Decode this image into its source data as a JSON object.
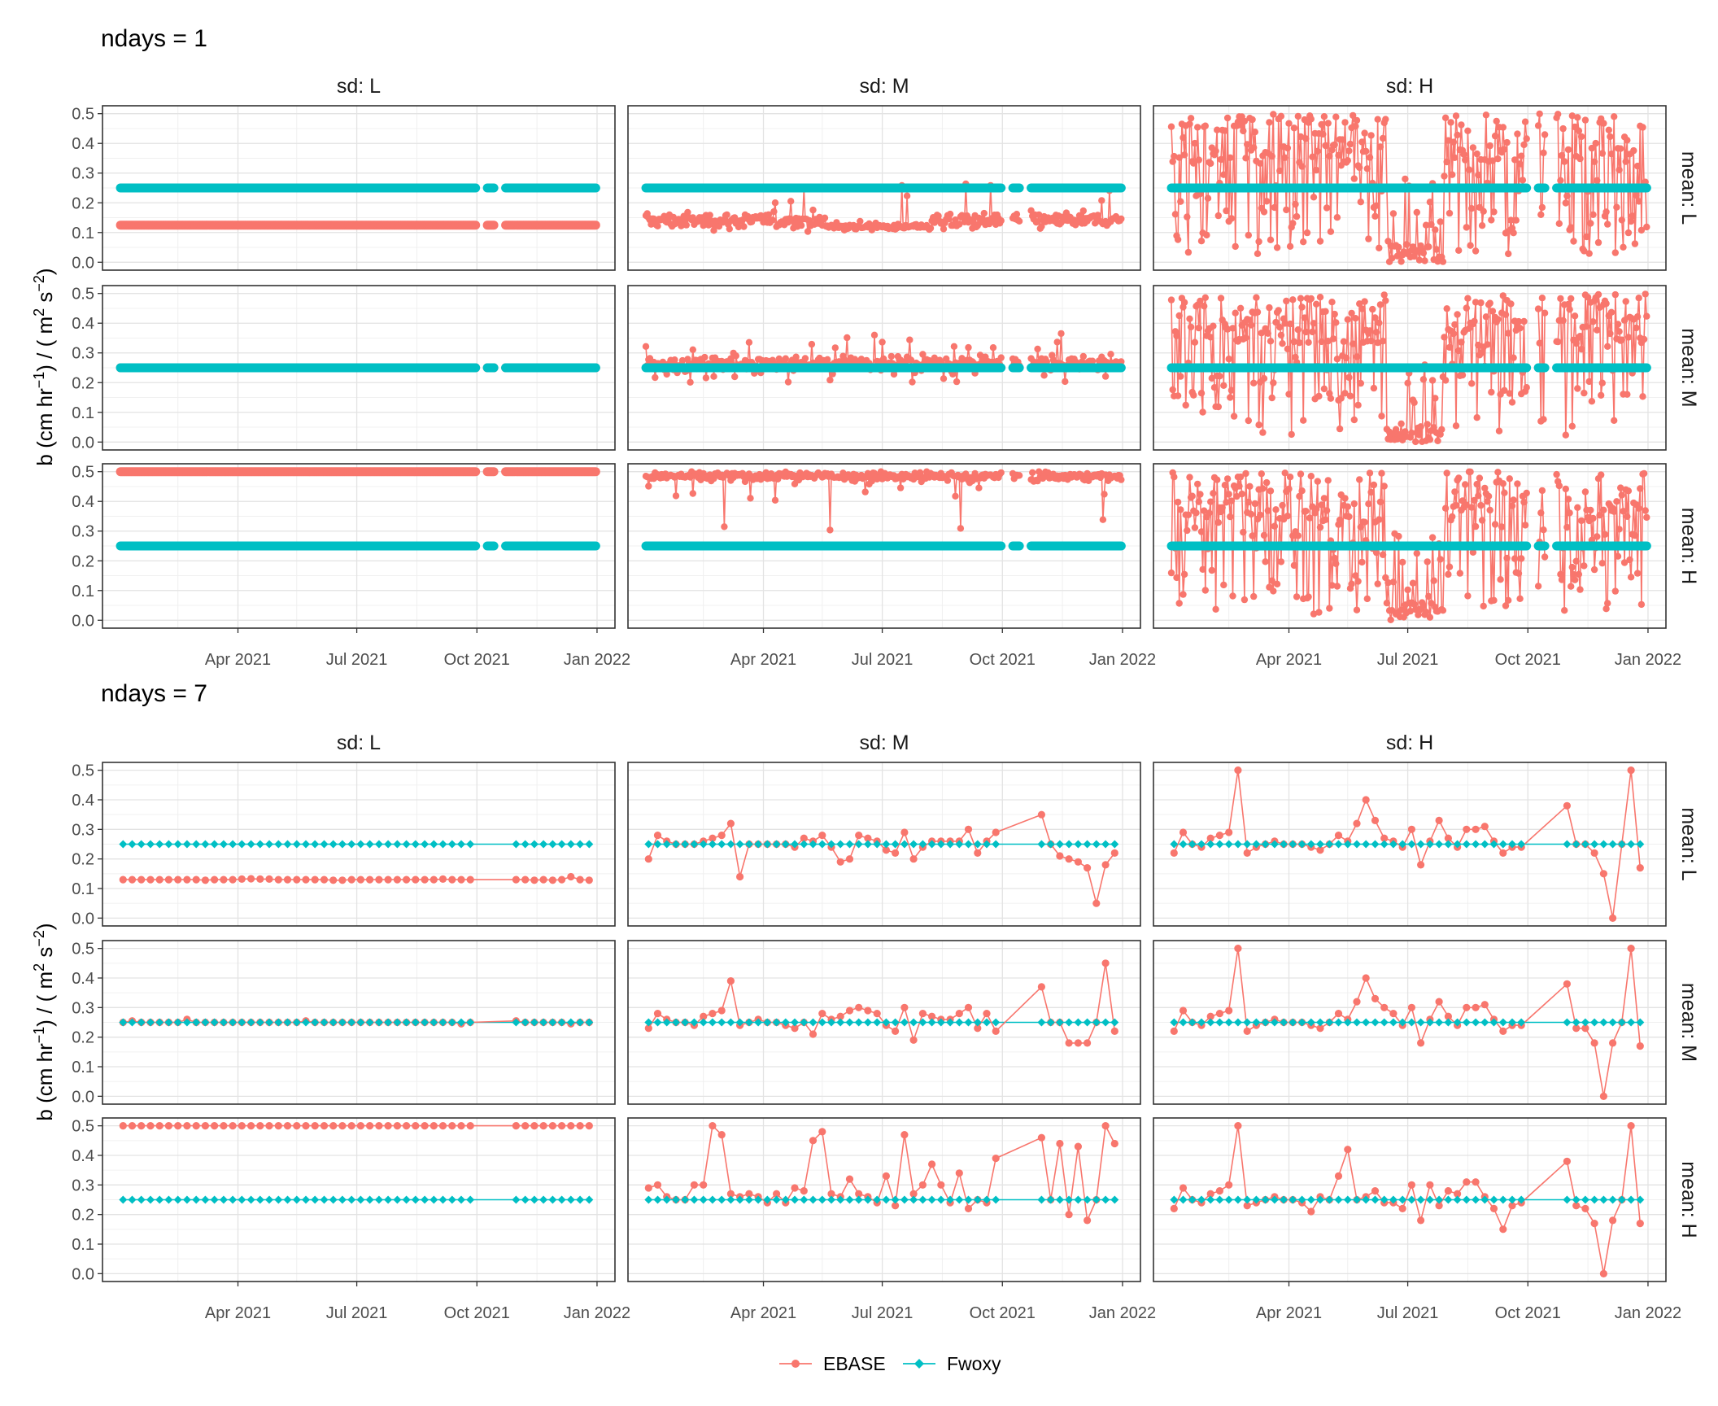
{
  "chart_data": [
    {
      "type": "line",
      "title": "ndays = 1",
      "ylabel": "b (cm hr^-1) / ( m^2 s^-2)",
      "ylim": [
        0,
        0.5
      ],
      "yticks": [
        "0.0",
        "0.1",
        "0.2",
        "0.3",
        "0.4",
        "0.5"
      ],
      "xlim": [
        "2021-01-01",
        "2022-01-01"
      ],
      "xticks": [
        "Apr 2021",
        "Jul 2021",
        "Oct 2021",
        "Jan 2022"
      ],
      "columns": [
        "sd: L",
        "sd: M",
        "sd: H"
      ],
      "rows": [
        "mean: L",
        "mean: M",
        "mean: H"
      ],
      "gaps": [
        [
          "2021-10-01",
          "2021-10-08"
        ],
        [
          "2021-10-15",
          "2021-10-22"
        ]
      ],
      "legend": "bottom",
      "grid": true,
      "panels": [
        {
          "col": "sd: L",
          "row": "mean: L",
          "EBASE": "constant ≈ 0.125",
          "Fwoxy": "constant 0.25"
        },
        {
          "col": "sd: M",
          "row": "mean: L",
          "EBASE": "daily ≈ 0.10–0.20, peak ≈ 0.29",
          "Fwoxy": "constant 0.25"
        },
        {
          "col": "sd: H",
          "row": "mean: L",
          "EBASE": "daily 0.0–0.5, near 0 in Jun–Jul 2021",
          "Fwoxy": "constant 0.25"
        },
        {
          "col": "sd: L",
          "row": "mean: M",
          "EBASE": "constant ≈ 0.25",
          "Fwoxy": "constant 0.25"
        },
        {
          "col": "sd: M",
          "row": "mean: M",
          "EBASE": "daily ≈ 0.20–0.37",
          "Fwoxy": "constant 0.25"
        },
        {
          "col": "sd: H",
          "row": "mean: M",
          "EBASE": "daily 0.0–0.5, near 0 in Jun–Jul 2021",
          "Fwoxy": "constant 0.25"
        },
        {
          "col": "sd: L",
          "row": "mean: H",
          "EBASE": "constant ≈ 0.50",
          "Fwoxy": "constant 0.25"
        },
        {
          "col": "sd: M",
          "row": "mean: H",
          "EBASE": "daily ≈ 0.30–0.50",
          "Fwoxy": "constant 0.25"
        },
        {
          "col": "sd: H",
          "row": "mean: H",
          "EBASE": "daily 0.0–0.5, near 0 in Jun–Jul 2021",
          "Fwoxy": "constant 0.25"
        }
      ],
      "series": [
        {
          "name": "EBASE",
          "color": "#F8766D"
        },
        {
          "name": "Fwoxy",
          "color": "#00BFC4"
        }
      ]
    },
    {
      "type": "line",
      "title": "ndays = 7",
      "ylabel": "b (cm hr^-1) / ( m^2 s^-2)",
      "ylim": [
        0,
        0.5
      ],
      "yticks": [
        "0.0",
        "0.1",
        "0.2",
        "0.3",
        "0.4",
        "0.5"
      ],
      "xlim": [
        "2021-01-01",
        "2022-01-01"
      ],
      "xticks": [
        "Apr 2021",
        "Jul 2021",
        "Oct 2021",
        "Jan 2022"
      ],
      "columns": [
        "sd: L",
        "sd: M",
        "sd: H"
      ],
      "rows": [
        "mean: L",
        "mean: M",
        "mean: H"
      ],
      "x": [
        "2021-01-03",
        "2021-01-10",
        "2021-01-17",
        "2021-01-24",
        "2021-01-31",
        "2021-02-07",
        "2021-02-14",
        "2021-02-21",
        "2021-02-28",
        "2021-03-07",
        "2021-03-14",
        "2021-03-21",
        "2021-03-28",
        "2021-04-04",
        "2021-04-11",
        "2021-04-18",
        "2021-04-25",
        "2021-05-02",
        "2021-05-09",
        "2021-05-16",
        "2021-05-23",
        "2021-05-30",
        "2021-06-06",
        "2021-06-13",
        "2021-06-20",
        "2021-06-27",
        "2021-07-04",
        "2021-07-11",
        "2021-07-18",
        "2021-07-25",
        "2021-08-01",
        "2021-08-08",
        "2021-08-15",
        "2021-08-22",
        "2021-08-29",
        "2021-09-05",
        "2021-09-12",
        "2021-09-19",
        "2021-09-26",
        "2021-10-31",
        "2021-11-07",
        "2021-11-14",
        "2021-11-21",
        "2021-11-28",
        "2021-12-05",
        "2021-12-12",
        "2021-12-19",
        "2021-12-26"
      ],
      "Fwoxy": 0.25,
      "panels": [
        {
          "col": "sd: L",
          "row": "mean: L",
          "EBASE": [
            0.13,
            0.13,
            0.13,
            0.13,
            0.13,
            0.13,
            0.13,
            0.13,
            0.13,
            0.128,
            0.13,
            0.13,
            0.13,
            0.132,
            0.133,
            0.132,
            0.132,
            0.13,
            0.13,
            0.13,
            0.13,
            0.13,
            0.13,
            0.128,
            0.128,
            0.13,
            0.13,
            0.13,
            0.13,
            0.13,
            0.13,
            0.13,
            0.13,
            0.13,
            0.13,
            0.132,
            0.13,
            0.13,
            0.13,
            0.13,
            0.13,
            0.128,
            0.13,
            0.128,
            0.13,
            0.14,
            0.13,
            0.128
          ]
        },
        {
          "col": "sd: M",
          "row": "mean: L",
          "EBASE": [
            0.2,
            0.28,
            0.26,
            0.25,
            0.25,
            0.25,
            0.26,
            0.27,
            0.28,
            0.32,
            0.14,
            0.25,
            0.25,
            0.25,
            0.25,
            0.25,
            0.24,
            0.27,
            0.26,
            0.28,
            0.24,
            0.19,
            0.2,
            0.28,
            0.27,
            0.26,
            0.23,
            0.22,
            0.29,
            0.2,
            0.24,
            0.26,
            0.26,
            0.26,
            0.26,
            0.3,
            0.22,
            0.26,
            0.29,
            0.35,
            0.25,
            0.21,
            0.2,
            0.19,
            0.17,
            0.05,
            0.18,
            0.22
          ]
        },
        {
          "col": "sd: H",
          "row": "mean: L",
          "EBASE": [
            0.22,
            0.29,
            0.25,
            0.24,
            0.27,
            0.28,
            0.29,
            0.5,
            0.22,
            0.24,
            0.25,
            0.26,
            0.25,
            0.25,
            0.25,
            0.24,
            0.23,
            0.25,
            0.28,
            0.26,
            0.32,
            0.4,
            0.33,
            0.27,
            0.26,
            0.24,
            0.3,
            0.18,
            0.26,
            0.33,
            0.27,
            0.24,
            0.3,
            0.3,
            0.31,
            0.26,
            0.22,
            0.24,
            0.24,
            0.38,
            0.25,
            0.25,
            0.22,
            0.15,
            0.0,
            0.25,
            0.5,
            0.17
          ]
        },
        {
          "col": "sd: L",
          "row": "mean: M",
          "EBASE": [
            0.25,
            0.255,
            0.25,
            0.25,
            0.25,
            0.25,
            0.25,
            0.26,
            0.25,
            0.25,
            0.25,
            0.25,
            0.25,
            0.25,
            0.25,
            0.25,
            0.25,
            0.25,
            0.25,
            0.25,
            0.255,
            0.25,
            0.25,
            0.25,
            0.25,
            0.25,
            0.25,
            0.25,
            0.25,
            0.25,
            0.25,
            0.25,
            0.25,
            0.25,
            0.25,
            0.25,
            0.25,
            0.245,
            0.25,
            0.255,
            0.25,
            0.25,
            0.25,
            0.25,
            0.25,
            0.245,
            0.25,
            0.25
          ]
        },
        {
          "col": "sd: M",
          "row": "mean: M",
          "EBASE": [
            0.23,
            0.28,
            0.26,
            0.25,
            0.25,
            0.24,
            0.27,
            0.28,
            0.29,
            0.39,
            0.24,
            0.25,
            0.26,
            0.25,
            0.25,
            0.24,
            0.23,
            0.25,
            0.21,
            0.28,
            0.26,
            0.27,
            0.29,
            0.3,
            0.29,
            0.28,
            0.24,
            0.22,
            0.3,
            0.19,
            0.28,
            0.27,
            0.26,
            0.26,
            0.28,
            0.3,
            0.23,
            0.28,
            0.22,
            0.37,
            0.25,
            0.25,
            0.18,
            0.18,
            0.18,
            0.25,
            0.45,
            0.22
          ]
        },
        {
          "col": "sd: H",
          "row": "mean: M",
          "EBASE": [
            0.22,
            0.29,
            0.25,
            0.24,
            0.27,
            0.28,
            0.29,
            0.5,
            0.22,
            0.24,
            0.25,
            0.26,
            0.25,
            0.25,
            0.25,
            0.24,
            0.23,
            0.25,
            0.28,
            0.26,
            0.32,
            0.4,
            0.33,
            0.3,
            0.28,
            0.24,
            0.3,
            0.18,
            0.26,
            0.32,
            0.27,
            0.24,
            0.3,
            0.3,
            0.31,
            0.26,
            0.22,
            0.24,
            0.24,
            0.38,
            0.23,
            0.23,
            0.18,
            0.0,
            0.18,
            0.25,
            0.5,
            0.17
          ]
        },
        {
          "col": "sd: L",
          "row": "mean: H",
          "EBASE": [
            0.5,
            0.5,
            0.5,
            0.5,
            0.5,
            0.5,
            0.5,
            0.5,
            0.5,
            0.5,
            0.5,
            0.5,
            0.5,
            0.5,
            0.5,
            0.5,
            0.5,
            0.5,
            0.5,
            0.5,
            0.5,
            0.5,
            0.5,
            0.5,
            0.5,
            0.5,
            0.5,
            0.5,
            0.5,
            0.5,
            0.5,
            0.5,
            0.5,
            0.5,
            0.5,
            0.5,
            0.5,
            0.5,
            0.5,
            0.5,
            0.5,
            0.5,
            0.5,
            0.5,
            0.5,
            0.5,
            0.5,
            0.5
          ]
        },
        {
          "col": "sd: M",
          "row": "mean: H",
          "EBASE": [
            0.29,
            0.3,
            0.26,
            0.25,
            0.25,
            0.3,
            0.3,
            0.5,
            0.47,
            0.27,
            0.26,
            0.27,
            0.26,
            0.24,
            0.27,
            0.24,
            0.29,
            0.28,
            0.45,
            0.48,
            0.27,
            0.26,
            0.32,
            0.27,
            0.26,
            0.24,
            0.33,
            0.23,
            0.47,
            0.27,
            0.3,
            0.37,
            0.3,
            0.24,
            0.34,
            0.22,
            0.25,
            0.24,
            0.39,
            0.46,
            0.25,
            0.44,
            0.2,
            0.43,
            0.18,
            0.25,
            0.5,
            0.44
          ]
        },
        {
          "col": "sd: H",
          "row": "mean: H",
          "EBASE": [
            0.22,
            0.29,
            0.25,
            0.24,
            0.27,
            0.28,
            0.3,
            0.5,
            0.23,
            0.24,
            0.25,
            0.26,
            0.25,
            0.25,
            0.24,
            0.21,
            0.26,
            0.25,
            0.33,
            0.42,
            0.25,
            0.26,
            0.28,
            0.24,
            0.24,
            0.22,
            0.3,
            0.18,
            0.3,
            0.23,
            0.28,
            0.27,
            0.31,
            0.31,
            0.26,
            0.22,
            0.15,
            0.23,
            0.24,
            0.38,
            0.23,
            0.22,
            0.17,
            0.0,
            0.18,
            0.25,
            0.5,
            0.17
          ]
        }
      ],
      "series": [
        {
          "name": "EBASE",
          "color": "#F8766D"
        },
        {
          "name": "Fwoxy",
          "color": "#00BFC4"
        }
      ]
    }
  ],
  "legend": {
    "items": [
      {
        "label": "EBASE",
        "color": "#F8766D"
      },
      {
        "label": "Fwoxy",
        "color": "#00BFC4"
      }
    ]
  }
}
